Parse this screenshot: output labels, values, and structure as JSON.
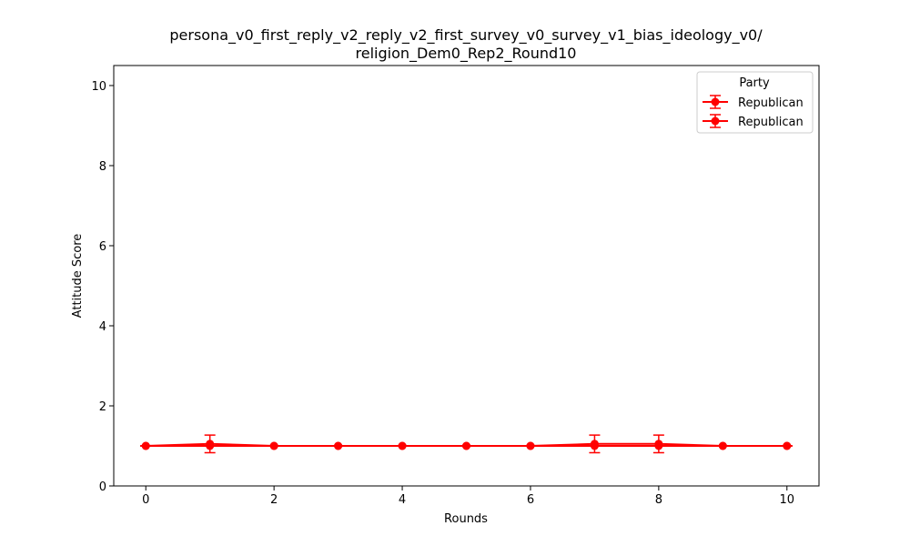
{
  "chart_data": {
    "type": "line",
    "title_line1": "persona_v0_first_reply_v2_reply_v2_first_survey_v0_survey_v1_bias_ideology_v0/",
    "title_line2": "religion_Dem0_Rep2_Round10",
    "xlabel": "Rounds",
    "ylabel": "Attitude Score",
    "xlim": [
      -0.5,
      10.5
    ],
    "ylim": [
      0,
      10.5
    ],
    "xticks": [
      0,
      2,
      4,
      6,
      8,
      10
    ],
    "yticks": [
      0,
      2,
      4,
      6,
      8,
      10
    ],
    "grid": false,
    "legend": {
      "title": "Party",
      "placement": "top-right",
      "entries": [
        "Republican",
        "Republican"
      ]
    },
    "series": [
      {
        "name": "Republican",
        "color": "#ff0000",
        "x": [
          0,
          1,
          2,
          3,
          4,
          5,
          6,
          7,
          8,
          9,
          10
        ],
        "y": [
          1.0,
          1.05,
          1.0,
          1.0,
          1.0,
          1.0,
          1.0,
          1.05,
          1.05,
          1.0,
          1.0
        ],
        "yerr": [
          0,
          0.22,
          0,
          0,
          0,
          0,
          0,
          0.22,
          0.22,
          0,
          0
        ]
      },
      {
        "name": "Republican",
        "color": "#ff0000",
        "x": [
          0,
          1,
          2,
          3,
          4,
          5,
          6,
          7,
          8,
          9,
          10
        ],
        "y": [
          1.0,
          1.0,
          1.0,
          1.0,
          1.0,
          1.0,
          1.0,
          1.0,
          1.0,
          1.0,
          1.0
        ],
        "yerr": [
          0,
          0,
          0,
          0,
          0,
          0,
          0,
          0,
          0,
          0,
          0
        ]
      }
    ]
  }
}
